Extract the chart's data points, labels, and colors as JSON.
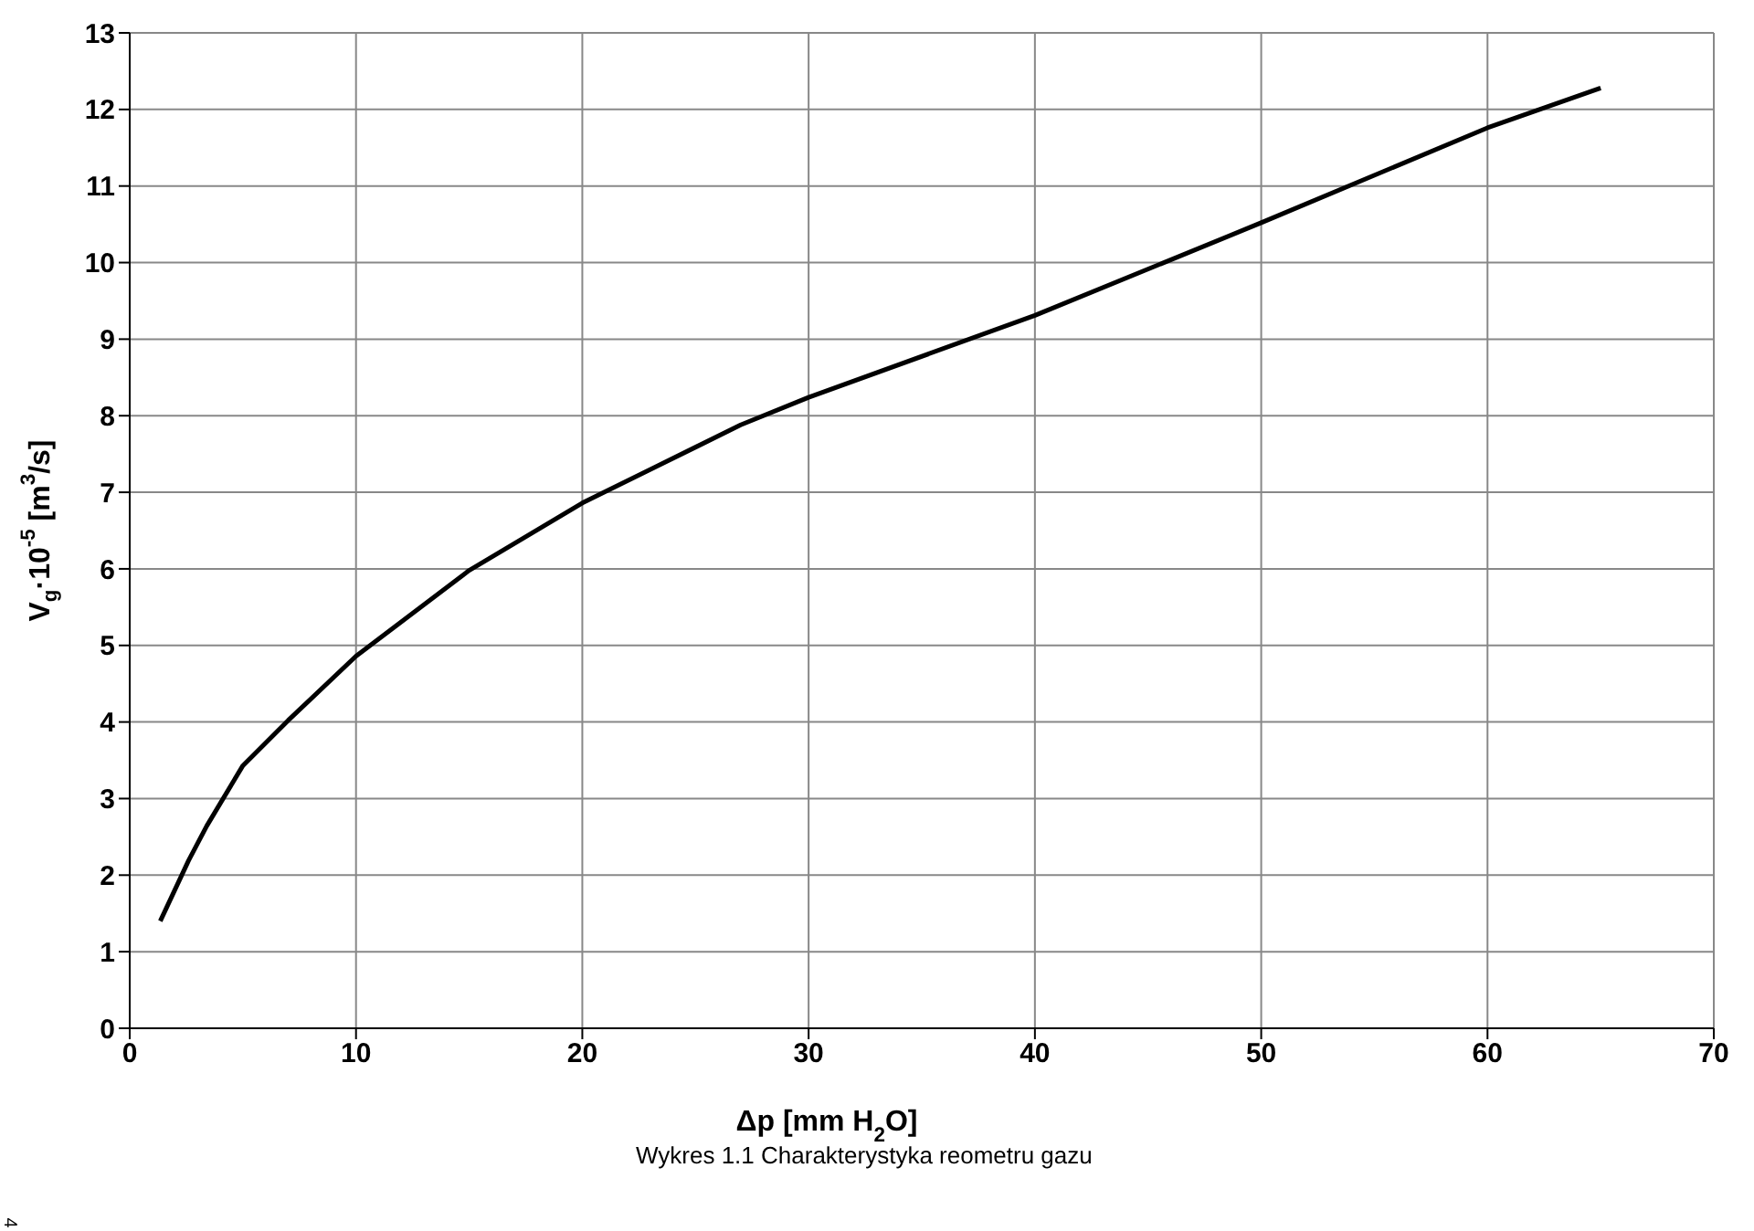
{
  "chart_data": {
    "type": "line",
    "xlabel": "Δp [mm H$_{2}$O]",
    "ylabel": "V$_{g}$·10$^{-5}$ [m$^{3}$/s]",
    "annotations": [
      "Wykres 1.1 Charakterystyka reometru gazu",
      "4"
    ],
    "x": [
      1.35,
      2.6,
      3.4,
      5,
      7,
      10,
      15,
      20,
      27,
      30,
      40,
      50,
      60,
      65
    ],
    "series": [
      {
        "color": "#000000",
        "values": [
          1.4,
          2.19,
          2.64,
          3.43,
          4.02,
          4.86,
          5.98,
          6.86,
          7.88,
          8.24,
          9.31,
          10.52,
          11.76,
          12.28
        ]
      }
    ],
    "xlim": [
      0,
      70
    ],
    "xticks": [
      0,
      10,
      20,
      30,
      40,
      50,
      60,
      70
    ],
    "ylim": [
      0,
      13
    ],
    "yticks": [
      0,
      1,
      2,
      3,
      4,
      5,
      6,
      7,
      8,
      9,
      10,
      11,
      12,
      13
    ],
    "grid": true,
    "marker": "none",
    "line_style": "solid"
  }
}
